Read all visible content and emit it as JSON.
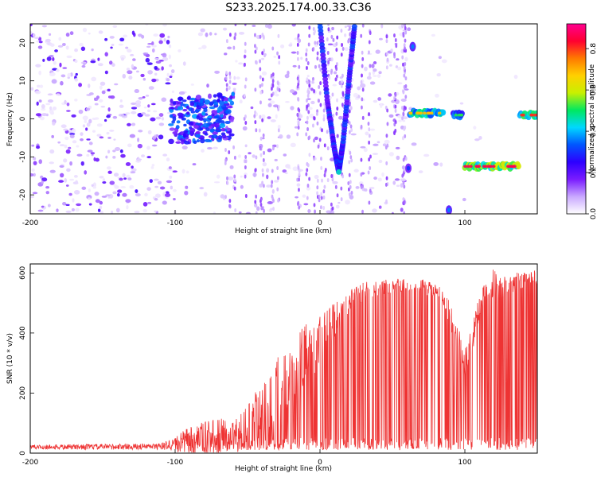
{
  "title": "S233.2025.174.00.33.C36",
  "chart_data": [
    {
      "type": "heatmap",
      "xlabel": "Height of straight line (km)",
      "ylabel": "Frequency (Hz)",
      "xlim": [
        -200,
        150
      ],
      "ylim": [
        -25,
        25
      ],
      "xticks": [
        -200,
        -100,
        0,
        100
      ],
      "yticks": [
        -20,
        -10,
        0,
        10,
        20
      ],
      "colorbar": {
        "label": "Normalized spectral amplitude",
        "range": [
          0.0,
          0.92
        ],
        "ticks": [
          "0.0",
          "0.2",
          "0.4",
          "0.6",
          "0.8"
        ],
        "colors": [
          "#ffffff",
          "#c9a8ff",
          "#7a1cff",
          "#2d00ff",
          "#0055ff",
          "#00d8ff",
          "#00e860",
          "#c8f000",
          "#ffd000",
          "#ff7a00",
          "#ff0030",
          "#ff0090"
        ]
      },
      "features": [
        {
          "name": "diffuse-noise",
          "x_range": [
            -200,
            -100
          ],
          "y_range": [
            -25,
            25
          ],
          "amplitude": 0.15
        },
        {
          "name": "cluster",
          "x_range": [
            -103,
            -60
          ],
          "y_range": [
            -6,
            6
          ],
          "amplitude": 0.35
        },
        {
          "name": "v-track",
          "points": [
            [
              0,
              25
            ],
            [
              5,
              5
            ],
            [
              10,
              -8
            ],
            [
              13,
              -14
            ],
            [
              16,
              -6
            ],
            [
              20,
              10
            ],
            [
              24,
              25
            ]
          ],
          "amplitude": 0.3
        },
        {
          "name": "band",
          "x_range": [
            62,
            85
          ],
          "y": 1.5,
          "amplitude": 0.6
        },
        {
          "name": "band",
          "x_range": [
            92,
            98
          ],
          "y": 1.0,
          "amplitude": 0.45
        },
        {
          "name": "band",
          "x_range": [
            100,
            137
          ],
          "y": -12.5,
          "amplitude": 0.75
        },
        {
          "name": "band",
          "x_range": [
            138,
            150
          ],
          "y": 1.0,
          "amplitude": 0.7
        },
        {
          "name": "blob",
          "x": 64,
          "y": 19,
          "amplitude": 0.3
        },
        {
          "name": "blob",
          "x": 61,
          "y": -13,
          "amplitude": 0.25
        },
        {
          "name": "blob",
          "x": 89,
          "y": -24,
          "amplitude": 0.3
        }
      ]
    },
    {
      "type": "line",
      "xlabel": "Height of straight line (km)",
      "ylabel": "SNR (10 * v/v)",
      "xlim": [
        -200,
        150
      ],
      "ylim": [
        0,
        630
      ],
      "xticks": [
        -200,
        -100,
        0,
        100
      ],
      "yticks": [
        0,
        200,
        400,
        600
      ],
      "series_color": "#ee3333",
      "envelope": {
        "x": [
          -200,
          -110,
          -100,
          -90,
          -80,
          -70,
          -60,
          -50,
          -40,
          -30,
          -20,
          -10,
          0,
          10,
          20,
          30,
          40,
          50,
          60,
          70,
          80,
          85,
          90,
          95,
          100,
          105,
          110,
          115,
          120,
          125,
          130,
          140,
          150
        ],
        "base": [
          20,
          22,
          30,
          40,
          50,
          55,
          55,
          90,
          150,
          210,
          260,
          320,
          380,
          440,
          500,
          540,
          550,
          555,
          560,
          555,
          545,
          520,
          460,
          360,
          320,
          380,
          490,
          540,
          570,
          550,
          560,
          580,
          585
        ],
        "spread": [
          8,
          10,
          25,
          50,
          55,
          60,
          60,
          70,
          90,
          110,
          120,
          110,
          80,
          60,
          40,
          30,
          25,
          25,
          25,
          25,
          25,
          30,
          40,
          60,
          60,
          50,
          40,
          35,
          50,
          40,
          35,
          30,
          25
        ],
        "dropout_rate": [
          0,
          0,
          0.05,
          0.1,
          0.15,
          0.2,
          0.3,
          0.35,
          0.35,
          0.4,
          0.45,
          0.45,
          0.5,
          0.5,
          0.5,
          0.45,
          0.45,
          0.45,
          0.45,
          0.4,
          0.35,
          0.3,
          0.25,
          0.25,
          0.25,
          0.3,
          0.35,
          0.4,
          0.4,
          0.4,
          0.45,
          0.45,
          0.4
        ]
      }
    }
  ]
}
